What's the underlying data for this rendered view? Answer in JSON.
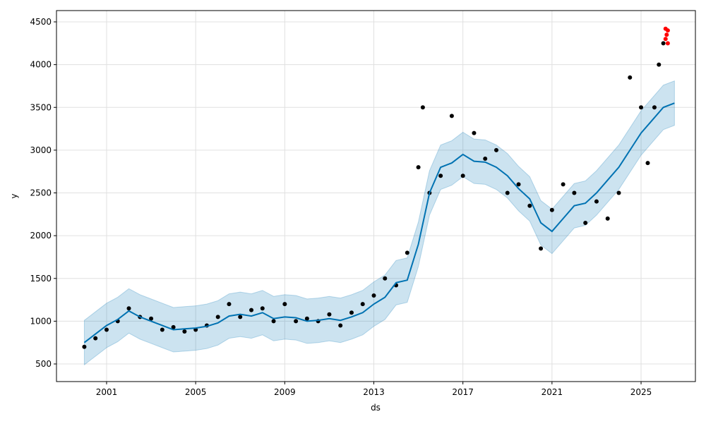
{
  "chart_data": {
    "type": "forecast",
    "xlabel": "ds",
    "ylabel": "y",
    "xlim": [
      1998.75,
      2027.44
    ],
    "ylim": [
      294,
      4632
    ],
    "xticks": [
      2001,
      2005,
      2009,
      2013,
      2017,
      2021,
      2025
    ],
    "yticks": [
      500,
      1000,
      1500,
      2000,
      2500,
      3000,
      3500,
      4000,
      4500
    ],
    "grid": true,
    "x": [
      2000.0,
      2000.5,
      2001.0,
      2001.5,
      2002.0,
      2002.5,
      2003.0,
      2003.5,
      2004.0,
      2004.5,
      2005.0,
      2005.5,
      2006.0,
      2006.5,
      2007.0,
      2007.5,
      2008.0,
      2008.5,
      2009.0,
      2009.5,
      2010.0,
      2010.5,
      2011.0,
      2011.5,
      2012.0,
      2012.5,
      2013.0,
      2013.5,
      2014.0,
      2014.5,
      2015.0,
      2015.5,
      2016.0,
      2016.5,
      2017.0,
      2017.5,
      2018.0,
      2018.5,
      2019.0,
      2019.5,
      2020.0,
      2020.5,
      2021.0,
      2021.5,
      2022.0,
      2022.5,
      2023.0,
      2023.5,
      2024.0,
      2024.5,
      2025.0,
      2025.5,
      2026.0,
      2026.5
    ],
    "trend": {
      "color": "#0072B2",
      "values": [
        750,
        850,
        950,
        1020,
        1120,
        1050,
        1000,
        950,
        900,
        910,
        920,
        940,
        980,
        1060,
        1080,
        1060,
        1100,
        1030,
        1050,
        1040,
        1000,
        1010,
        1030,
        1010,
        1050,
        1100,
        1200,
        1280,
        1450,
        1480,
        1900,
        2500,
        2800,
        2850,
        2950,
        2870,
        2860,
        2800,
        2700,
        2550,
        2430,
        2150,
        2050,
        2200,
        2350,
        2380,
        2500,
        2650,
        2800,
        3000,
        3200,
        3350,
        3500,
        3550
      ]
    },
    "interval": {
      "color": "#0072B2",
      "lower": [
        490,
        590,
        690,
        760,
        860,
        790,
        740,
        690,
        640,
        650,
        660,
        680,
        720,
        800,
        820,
        800,
        840,
        770,
        790,
        780,
        740,
        750,
        770,
        750,
        790,
        840,
        940,
        1020,
        1190,
        1220,
        1640,
        2240,
        2540,
        2590,
        2690,
        2610,
        2600,
        2540,
        2440,
        2290,
        2170,
        1890,
        1790,
        1940,
        2090,
        2120,
        2240,
        2390,
        2540,
        2740,
        2940,
        3090,
        3240,
        3290
      ],
      "upper": [
        1010,
        1110,
        1210,
        1280,
        1380,
        1310,
        1260,
        1210,
        1160,
        1170,
        1180,
        1200,
        1240,
        1320,
        1340,
        1320,
        1360,
        1290,
        1310,
        1300,
        1260,
        1270,
        1290,
        1270,
        1310,
        1360,
        1460,
        1540,
        1710,
        1740,
        2160,
        2760,
        3060,
        3110,
        3210,
        3130,
        3120,
        3060,
        2960,
        2810,
        2690,
        2410,
        2310,
        2460,
        2610,
        2640,
        2760,
        2910,
        3060,
        3260,
        3460,
        3610,
        3760,
        3810
      ]
    },
    "points": {
      "color": "#000000",
      "x": [
        2000.0,
        2000.5,
        2001.0,
        2001.5,
        2002.0,
        2002.5,
        2003.0,
        2003.5,
        2004.0,
        2004.5,
        2005.0,
        2005.5,
        2006.0,
        2006.5,
        2007.0,
        2007.5,
        2008.0,
        2008.5,
        2009.0,
        2009.5,
        2010.0,
        2010.5,
        2011.0,
        2011.5,
        2012.0,
        2012.5,
        2013.0,
        2013.5,
        2014.0,
        2014.5,
        2015.0,
        2015.2,
        2015.5,
        2016.0,
        2016.5,
        2017.0,
        2017.5,
        2018.0,
        2018.5,
        2019.0,
        2019.5,
        2020.0,
        2020.5,
        2021.0,
        2021.5,
        2022.0,
        2022.5,
        2023.0,
        2023.5,
        2024.0,
        2024.5,
        2025.0,
        2025.3,
        2025.6,
        2025.8,
        2026.0
      ],
      "values": [
        700,
        800,
        900,
        1000,
        1150,
        1050,
        1030,
        900,
        930,
        880,
        900,
        950,
        1050,
        1200,
        1050,
        1130,
        1150,
        1000,
        1200,
        1000,
        1030,
        1000,
        1080,
        950,
        1100,
        1200,
        1300,
        1500,
        1420,
        1800,
        2800,
        3500,
        2500,
        2700,
        3400,
        2700,
        3200,
        2900,
        3000,
        2500,
        2600,
        2350,
        1850,
        2300,
        2600,
        2500,
        2150,
        2400,
        2200,
        2500,
        3850,
        3500,
        2850,
        3500,
        4000,
        4250
      ]
    },
    "outliers": {
      "color": "#ff0000",
      "x": [
        2026.1,
        2026.15,
        2026.2,
        2026.1,
        2026.2
      ],
      "values": [
        4420,
        4350,
        4250,
        4300,
        4400
      ]
    }
  }
}
